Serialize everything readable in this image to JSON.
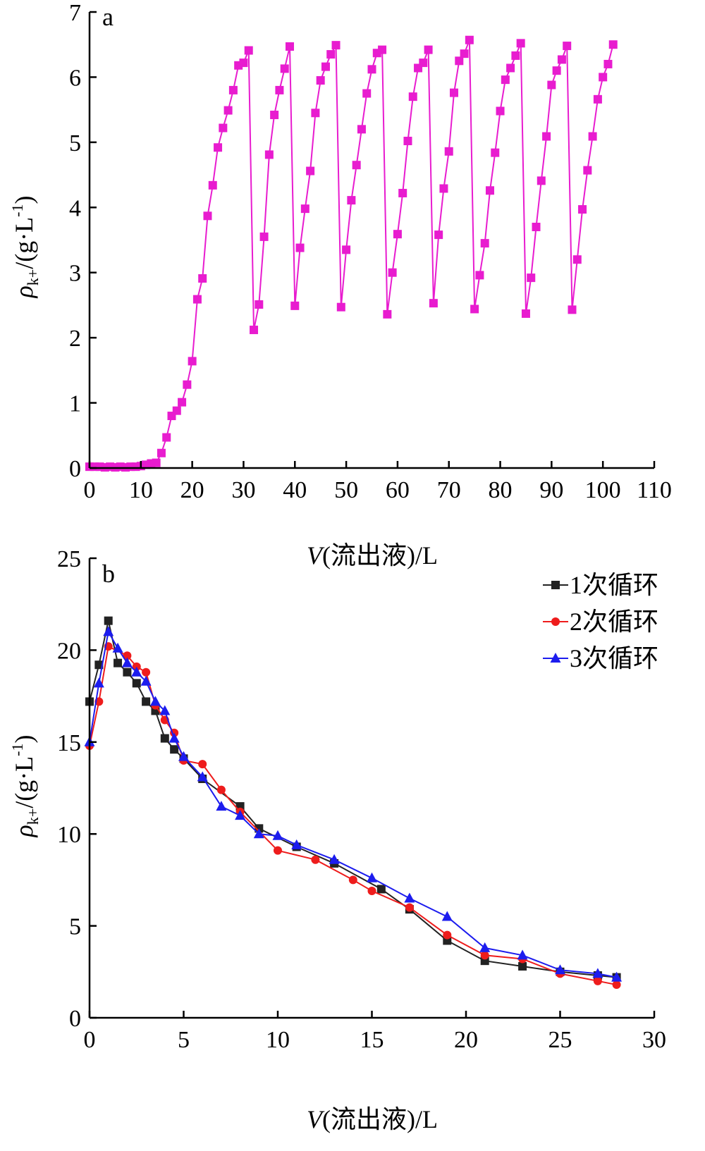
{
  "chart_data": [
    {
      "type": "line",
      "panel_label": "a",
      "ylabel_main": "ρ",
      "ylabel_sub": "k+",
      "ylabel_tail": "/(g·L",
      "ylabel_sup": "-1",
      "ylabel_close": ")",
      "xlabel_var": "V",
      "xlabel_rest": "(流出液)/L",
      "xlim": [
        0,
        110
      ],
      "ylim": [
        0,
        7
      ],
      "xticks": [
        "0",
        "10",
        "20",
        "30",
        "40",
        "50",
        "60",
        "70",
        "80",
        "90",
        "100",
        "110"
      ],
      "yticks": [
        "0",
        "1",
        "2",
        "3",
        "4",
        "5",
        "6",
        "7"
      ],
      "grid": false,
      "series": [
        {
          "color": "#e81ccf",
          "marker": "square",
          "x": [
            0,
            1,
            2,
            3,
            4,
            5,
            6,
            7,
            8,
            9,
            10,
            11,
            12,
            13,
            14,
            15,
            16,
            17,
            18,
            19,
            20,
            21,
            22,
            23,
            24,
            25,
            26,
            27,
            28,
            29,
            30,
            31,
            32,
            33,
            34,
            35,
            36,
            37,
            38,
            39,
            40,
            41,
            42,
            43,
            44,
            45,
            46,
            47,
            48,
            49,
            50,
            51,
            52,
            53,
            54,
            55,
            56,
            57,
            58,
            59,
            60,
            61,
            62,
            63,
            64,
            65,
            66,
            67,
            68,
            69,
            70,
            71,
            72,
            73,
            74,
            75,
            76,
            77,
            78,
            79,
            80,
            81,
            82,
            83,
            84,
            85,
            86,
            87,
            88,
            89,
            90,
            91,
            92,
            93,
            94,
            95,
            96,
            97,
            98,
            99,
            100,
            101,
            102
          ],
          "y": [
            0.02,
            0.02,
            0.02,
            0.01,
            0.02,
            0.01,
            0.02,
            0.01,
            0.02,
            0.02,
            0.03,
            0.05,
            0.07,
            0.08,
            0.23,
            0.47,
            0.8,
            0.88,
            1.01,
            1.28,
            1.64,
            2.59,
            2.91,
            3.87,
            4.34,
            4.92,
            5.22,
            5.49,
            5.8,
            6.18,
            6.22,
            6.41,
            2.12,
            2.51,
            3.55,
            4.81,
            5.42,
            5.8,
            6.13,
            6.47,
            2.49,
            3.38,
            3.98,
            4.56,
            5.45,
            5.95,
            6.16,
            6.35,
            6.49,
            2.47,
            3.35,
            4.11,
            4.65,
            5.2,
            5.75,
            6.12,
            6.37,
            6.42,
            2.36,
            3.0,
            3.59,
            4.22,
            5.02,
            5.7,
            6.14,
            6.22,
            6.42,
            2.53,
            3.58,
            4.29,
            4.86,
            5.76,
            6.25,
            6.36,
            6.57,
            2.44,
            2.96,
            3.45,
            4.26,
            4.84,
            5.48,
            5.96,
            6.14,
            6.33,
            6.52,
            2.37,
            2.92,
            3.7,
            4.41,
            5.09,
            5.88,
            6.1,
            6.27,
            6.48,
            2.43,
            3.2,
            3.97,
            4.57,
            5.09,
            5.66,
            6.0,
            6.2,
            6.5
          ]
        }
      ]
    },
    {
      "type": "line",
      "panel_label": "b",
      "ylabel_main": "ρ",
      "ylabel_sub": "k+",
      "ylabel_tail": "/(g·L",
      "ylabel_sup": "-1",
      "ylabel_close": ")",
      "xlabel_var": "V",
      "xlabel_rest": "(流出液)/L",
      "xlim": [
        0,
        30
      ],
      "ylim": [
        0,
        25
      ],
      "xticks": [
        "0",
        "5",
        "10",
        "15",
        "20",
        "25",
        "30"
      ],
      "yticks": [
        "0",
        "5",
        "10",
        "15",
        "20",
        "25"
      ],
      "grid": false,
      "legend_position": "top-right",
      "series": [
        {
          "name": "1次循环",
          "color": "#222222",
          "marker": "square",
          "x": [
            0,
            0.5,
            1,
            1.5,
            2,
            2.5,
            3,
            3.5,
            4,
            4.5,
            5,
            6,
            8,
            9,
            11,
            13,
            15.5,
            17,
            19,
            21,
            23,
            25,
            27,
            28
          ],
          "y": [
            17.2,
            19.2,
            21.6,
            19.3,
            18.8,
            18.2,
            17.2,
            16.7,
            15.2,
            14.6,
            14.1,
            13.0,
            11.5,
            10.3,
            9.3,
            8.4,
            7.0,
            5.9,
            4.2,
            3.1,
            2.8,
            2.5,
            2.3,
            2.2
          ]
        },
        {
          "name": "2次循环",
          "color": "#ee1c1c",
          "marker": "circle",
          "x": [
            0,
            0.5,
            1,
            2,
            2.5,
            3,
            3.5,
            4,
            4.5,
            5,
            6,
            7,
            8,
            10,
            12,
            14,
            15,
            17,
            19,
            21,
            23,
            25,
            27,
            28
          ],
          "y": [
            14.8,
            17.2,
            20.2,
            19.7,
            19.1,
            18.8,
            17.0,
            16.2,
            15.5,
            14.0,
            13.8,
            12.4,
            11.2,
            9.1,
            8.6,
            7.5,
            6.9,
            6.0,
            4.5,
            3.4,
            3.2,
            2.4,
            2.0,
            1.8
          ]
        },
        {
          "name": "3次循环",
          "color": "#1c1cee",
          "marker": "triangle",
          "x": [
            0,
            0.5,
            1,
            1.5,
            2,
            2.5,
            3,
            3.5,
            4,
            4.5,
            5,
            6,
            7,
            8,
            9,
            10,
            11,
            13,
            15,
            17,
            19,
            21,
            23,
            25,
            27,
            28
          ],
          "y": [
            15.0,
            18.2,
            21.0,
            20.1,
            19.3,
            18.8,
            18.3,
            17.2,
            16.7,
            15.2,
            14.2,
            13.1,
            11.5,
            11.0,
            10.0,
            9.9,
            9.4,
            8.6,
            7.6,
            6.5,
            5.5,
            3.8,
            3.4,
            2.6,
            2.4,
            2.2
          ]
        }
      ]
    }
  ]
}
